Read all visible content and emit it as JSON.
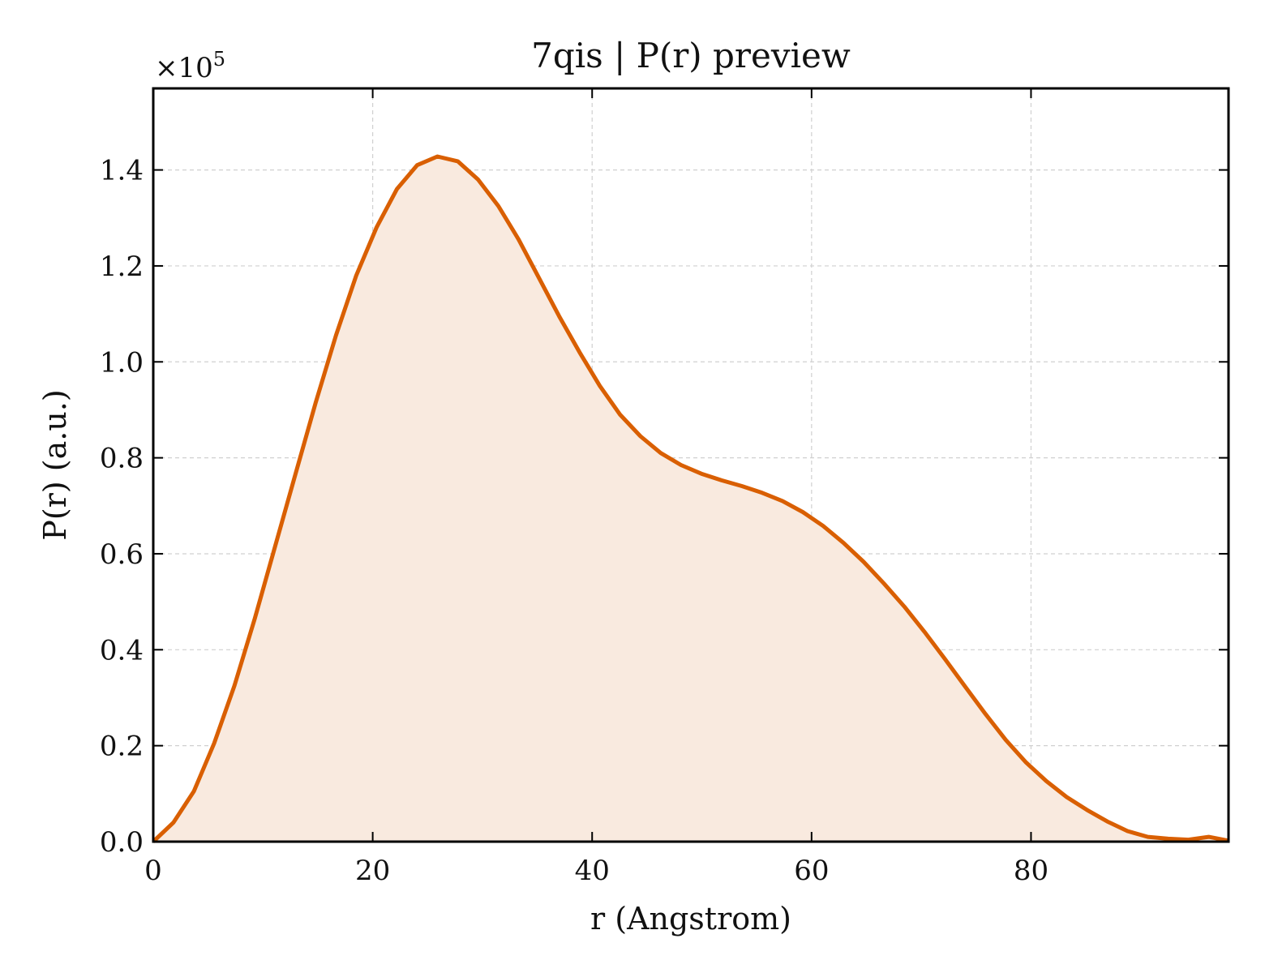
{
  "chart_data": {
    "type": "area",
    "title": "7qis | P(r) preview",
    "xlabel": "r (Angstrom)",
    "ylabel": "P(r) (a.u.)",
    "y_multiplier_base": "×10",
    "y_multiplier_exp": "5",
    "xlim": [
      0,
      98
    ],
    "ylim": [
      0,
      1.57
    ],
    "x_ticks": [
      0,
      20,
      40,
      60,
      80
    ],
    "x_tick_labels": [
      "0",
      "20",
      "40",
      "60",
      "80"
    ],
    "y_ticks": [
      0,
      0.2,
      0.4,
      0.6,
      0.8,
      1.0,
      1.2,
      1.4
    ],
    "y_tick_labels": [
      "0.0",
      "0.2",
      "0.4",
      "0.6",
      "0.8",
      "1.0",
      "1.2",
      "1.4"
    ],
    "grid": true,
    "line_color": "#d95f02",
    "fill_color": "#f9eadf",
    "x": [
      0,
      1.85,
      3.7,
      5.55,
      7.4,
      9.25,
      11.1,
      12.95,
      14.8,
      16.65,
      18.5,
      20.35,
      22.2,
      24.05,
      25.9,
      27.75,
      29.6,
      31.45,
      33.3,
      35.15,
      37.0,
      38.85,
      40.7,
      42.55,
      44.4,
      46.25,
      48.1,
      49.95,
      51.8,
      53.65,
      55.5,
      57.35,
      59.2,
      61.05,
      62.9,
      64.75,
      66.6,
      68.45,
      70.3,
      72.15,
      74.0,
      75.85,
      77.7,
      79.55,
      81.4,
      83.25,
      85.1,
      86.95,
      88.8,
      90.65,
      92.5,
      94.35,
      96.2,
      98.0
    ],
    "y": [
      0.0,
      0.04,
      0.105,
      0.205,
      0.325,
      0.465,
      0.615,
      0.765,
      0.915,
      1.055,
      1.18,
      1.28,
      1.36,
      1.41,
      1.428,
      1.418,
      1.38,
      1.325,
      1.255,
      1.175,
      1.095,
      1.02,
      0.95,
      0.89,
      0.845,
      0.81,
      0.785,
      0.767,
      0.753,
      0.741,
      0.727,
      0.71,
      0.687,
      0.658,
      0.623,
      0.583,
      0.538,
      0.49,
      0.437,
      0.381,
      0.323,
      0.266,
      0.212,
      0.165,
      0.126,
      0.093,
      0.066,
      0.042,
      0.022,
      0.01,
      0.006,
      0.004,
      0.01,
      0.002
    ]
  }
}
